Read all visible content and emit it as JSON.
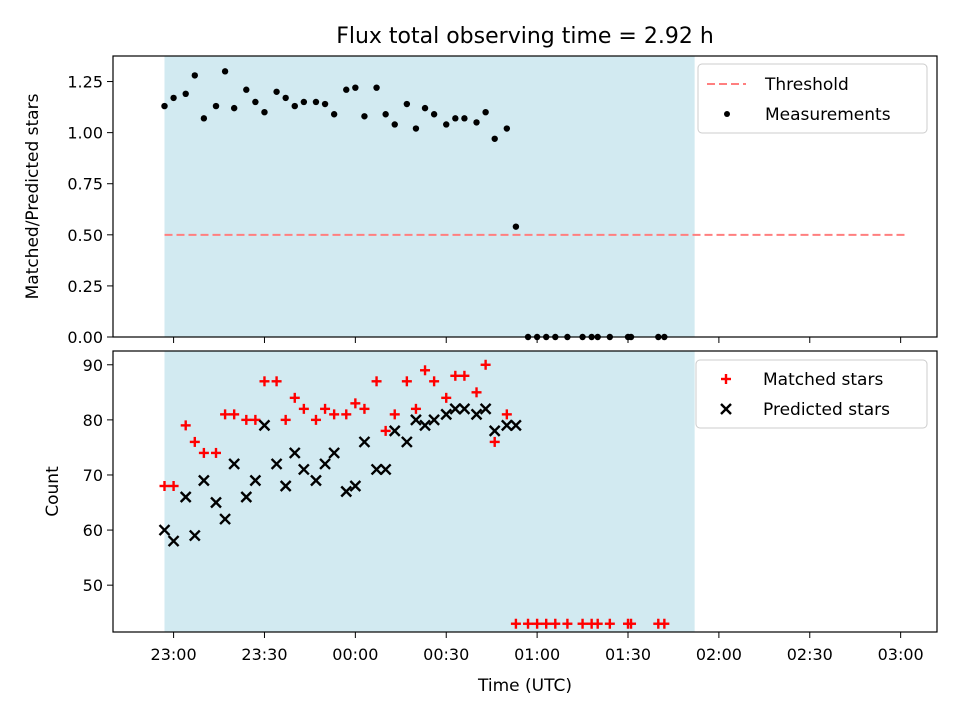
{
  "title": "Flux total observing time = 2.92 h",
  "chart_data": [
    {
      "type": "scatter",
      "ylabel": "Matched/Predicted stars",
      "ylim": [
        0,
        1.375
      ],
      "yticks": [
        "0.00",
        "0.25",
        "0.50",
        "0.75",
        "1.00",
        "1.25"
      ],
      "shaded_interval": [
        "22:57",
        "01:52"
      ],
      "shade_color": "#add8e6",
      "legend_position": "upper right",
      "grid": false,
      "series": [
        {
          "name": "Threshold",
          "kind": "dashed-line",
          "color": "#ff7f7f",
          "y": 0.5,
          "x_range": [
            "22:57",
            "03:02"
          ]
        },
        {
          "name": "Measurements",
          "kind": "dot",
          "color": "#000000",
          "points": [
            [
              "22:57",
              1.13
            ],
            [
              "23:00",
              1.17
            ],
            [
              "23:04",
              1.19
            ],
            [
              "23:07",
              1.28
            ],
            [
              "23:10",
              1.07
            ],
            [
              "23:14",
              1.13
            ],
            [
              "23:17",
              1.3
            ],
            [
              "23:20",
              1.12
            ],
            [
              "23:24",
              1.21
            ],
            [
              "23:27",
              1.15
            ],
            [
              "23:30",
              1.1
            ],
            [
              "23:34",
              1.2
            ],
            [
              "23:37",
              1.17
            ],
            [
              "23:40",
              1.13
            ],
            [
              "23:43",
              1.15
            ],
            [
              "23:47",
              1.15
            ],
            [
              "23:50",
              1.14
            ],
            [
              "23:53",
              1.09
            ],
            [
              "23:57",
              1.21
            ],
            [
              "00:00",
              1.22
            ],
            [
              "00:03",
              1.08
            ],
            [
              "00:07",
              1.22
            ],
            [
              "00:10",
              1.09
            ],
            [
              "00:13",
              1.04
            ],
            [
              "00:17",
              1.14
            ],
            [
              "00:20",
              1.02
            ],
            [
              "00:23",
              1.12
            ],
            [
              "00:26",
              1.09
            ],
            [
              "00:30",
              1.04
            ],
            [
              "00:33",
              1.07
            ],
            [
              "00:36",
              1.07
            ],
            [
              "00:40",
              1.05
            ],
            [
              "00:43",
              1.1
            ],
            [
              "00:46",
              0.97
            ],
            [
              "00:50",
              1.02
            ],
            [
              "00:53",
              0.54
            ],
            [
              "00:57",
              0.0
            ],
            [
              "01:00",
              0.0
            ],
            [
              "01:03",
              0.0
            ],
            [
              "01:06",
              0.0
            ],
            [
              "01:10",
              0.0
            ],
            [
              "01:15",
              0.0
            ],
            [
              "01:18",
              0.0
            ],
            [
              "01:20",
              0.0
            ],
            [
              "01:24",
              0.0
            ],
            [
              "01:30",
              0.0
            ],
            [
              "01:31",
              0.0
            ],
            [
              "01:40",
              0.0
            ],
            [
              "01:42",
              0.0
            ]
          ]
        }
      ]
    },
    {
      "type": "scatter",
      "xlabel": "Time (UTC)",
      "ylabel": "Count",
      "ylim": [
        41.5,
        92.5
      ],
      "yticks": [
        "50",
        "60",
        "70",
        "80",
        "90"
      ],
      "xticks": [
        "23:00",
        "23:30",
        "00:00",
        "00:30",
        "01:00",
        "01:30",
        "02:00",
        "02:30",
        "03:00"
      ],
      "xlim": [
        "22:40",
        "03:12"
      ],
      "shaded_interval": [
        "22:57",
        "01:52"
      ],
      "shade_color": "#add8e6",
      "legend_position": "upper right",
      "grid": false,
      "series": [
        {
          "name": "Matched stars",
          "marker": "+",
          "color": "#ff0000",
          "points": [
            [
              "22:57",
              68
            ],
            [
              "23:00",
              68
            ],
            [
              "23:04",
              79
            ],
            [
              "23:07",
              76
            ],
            [
              "23:10",
              74
            ],
            [
              "23:14",
              74
            ],
            [
              "23:17",
              81
            ],
            [
              "23:20",
              81
            ],
            [
              "23:24",
              80
            ],
            [
              "23:27",
              80
            ],
            [
              "23:30",
              87
            ],
            [
              "23:34",
              87
            ],
            [
              "23:37",
              80
            ],
            [
              "23:40",
              84
            ],
            [
              "23:43",
              82
            ],
            [
              "23:47",
              80
            ],
            [
              "23:50",
              82
            ],
            [
              "23:53",
              81
            ],
            [
              "23:57",
              81
            ],
            [
              "00:00",
              83
            ],
            [
              "00:03",
              82
            ],
            [
              "00:07",
              87
            ],
            [
              "00:10",
              78
            ],
            [
              "00:13",
              81
            ],
            [
              "00:17",
              87
            ],
            [
              "00:20",
              82
            ],
            [
              "00:23",
              89
            ],
            [
              "00:26",
              87
            ],
            [
              "00:30",
              84
            ],
            [
              "00:33",
              88
            ],
            [
              "00:36",
              88
            ],
            [
              "00:40",
              85
            ],
            [
              "00:43",
              90
            ],
            [
              "00:46",
              76
            ],
            [
              "00:50",
              81
            ],
            [
              "00:53",
              43
            ],
            [
              "00:57",
              43
            ],
            [
              "01:00",
              43
            ],
            [
              "01:03",
              43
            ],
            [
              "01:06",
              43
            ],
            [
              "01:10",
              43
            ],
            [
              "01:15",
              43
            ],
            [
              "01:18",
              43
            ],
            [
              "01:20",
              43
            ],
            [
              "01:24",
              43
            ],
            [
              "01:30",
              43
            ],
            [
              "01:31",
              43
            ],
            [
              "01:40",
              43
            ],
            [
              "01:42",
              43
            ]
          ]
        },
        {
          "name": "Predicted stars",
          "marker": "x",
          "color": "#000000",
          "points": [
            [
              "22:57",
              60
            ],
            [
              "23:00",
              58
            ],
            [
              "23:04",
              66
            ],
            [
              "23:07",
              59
            ],
            [
              "23:10",
              69
            ],
            [
              "23:14",
              65
            ],
            [
              "23:17",
              62
            ],
            [
              "23:20",
              72
            ],
            [
              "23:24",
              66
            ],
            [
              "23:27",
              69
            ],
            [
              "23:30",
              79
            ],
            [
              "23:34",
              72
            ],
            [
              "23:37",
              68
            ],
            [
              "23:40",
              74
            ],
            [
              "23:43",
              71
            ],
            [
              "23:47",
              69
            ],
            [
              "23:50",
              72
            ],
            [
              "23:53",
              74
            ],
            [
              "23:57",
              67
            ],
            [
              "00:00",
              68
            ],
            [
              "00:03",
              76
            ],
            [
              "00:07",
              71
            ],
            [
              "00:10",
              71
            ],
            [
              "00:13",
              78
            ],
            [
              "00:17",
              76
            ],
            [
              "00:20",
              80
            ],
            [
              "00:23",
              79
            ],
            [
              "00:26",
              80
            ],
            [
              "00:30",
              81
            ],
            [
              "00:33",
              82
            ],
            [
              "00:36",
              82
            ],
            [
              "00:40",
              81
            ],
            [
              "00:43",
              82
            ],
            [
              "00:46",
              78
            ],
            [
              "00:50",
              79
            ],
            [
              "00:53",
              79
            ]
          ]
        }
      ]
    }
  ]
}
